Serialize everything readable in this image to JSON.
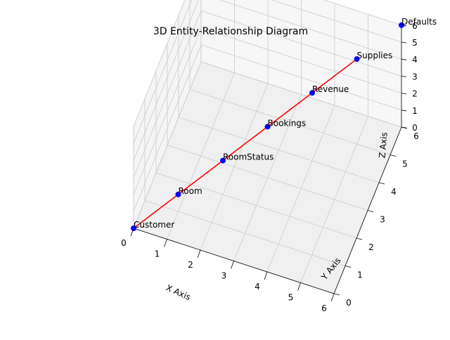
{
  "chart_data": {
    "type": "scatter",
    "projection": "3d",
    "title": "3D Entity-Relationship Diagram",
    "xlabel": "X Axis",
    "ylabel": "Y Axis",
    "zlabel": "Z Axis",
    "xlim": [
      0,
      6
    ],
    "ylim": [
      0,
      6
    ],
    "zlim": [
      0,
      6
    ],
    "x_ticks": [
      "0",
      "1",
      "2",
      "3",
      "4",
      "5",
      "6"
    ],
    "y_ticks": [
      "0",
      "1",
      "2",
      "3",
      "4",
      "5",
      "6"
    ],
    "z_ticks": [
      "0",
      "1",
      "2",
      "3",
      "4",
      "5",
      "6"
    ],
    "grid": true,
    "points": [
      {
        "label": "Customer",
        "x": 0,
        "y": 0,
        "z": 0
      },
      {
        "label": "Room",
        "x": 1,
        "y": 1,
        "z": 1
      },
      {
        "label": "RoomStatus",
        "x": 2,
        "y": 2,
        "z": 2
      },
      {
        "label": "Bookings",
        "x": 3,
        "y": 3,
        "z": 3
      },
      {
        "label": "Revenue",
        "x": 4,
        "y": 4,
        "z": 4
      },
      {
        "label": "Supplies",
        "x": 5,
        "y": 5,
        "z": 5
      },
      {
        "label": "Defaults",
        "x": 6,
        "y": 6,
        "z": 6
      }
    ],
    "connections": [
      [
        "Customer",
        "Room"
      ],
      [
        "Room",
        "RoomStatus"
      ],
      [
        "RoomStatus",
        "Bookings"
      ],
      [
        "Bookings",
        "Revenue"
      ],
      [
        "Revenue",
        "Supplies"
      ]
    ],
    "colors": {
      "points": "#0000ff",
      "lines": "#ff0000",
      "pane": "#f2f2f2",
      "grid": "#cccccc",
      "axis": "#000000"
    }
  }
}
